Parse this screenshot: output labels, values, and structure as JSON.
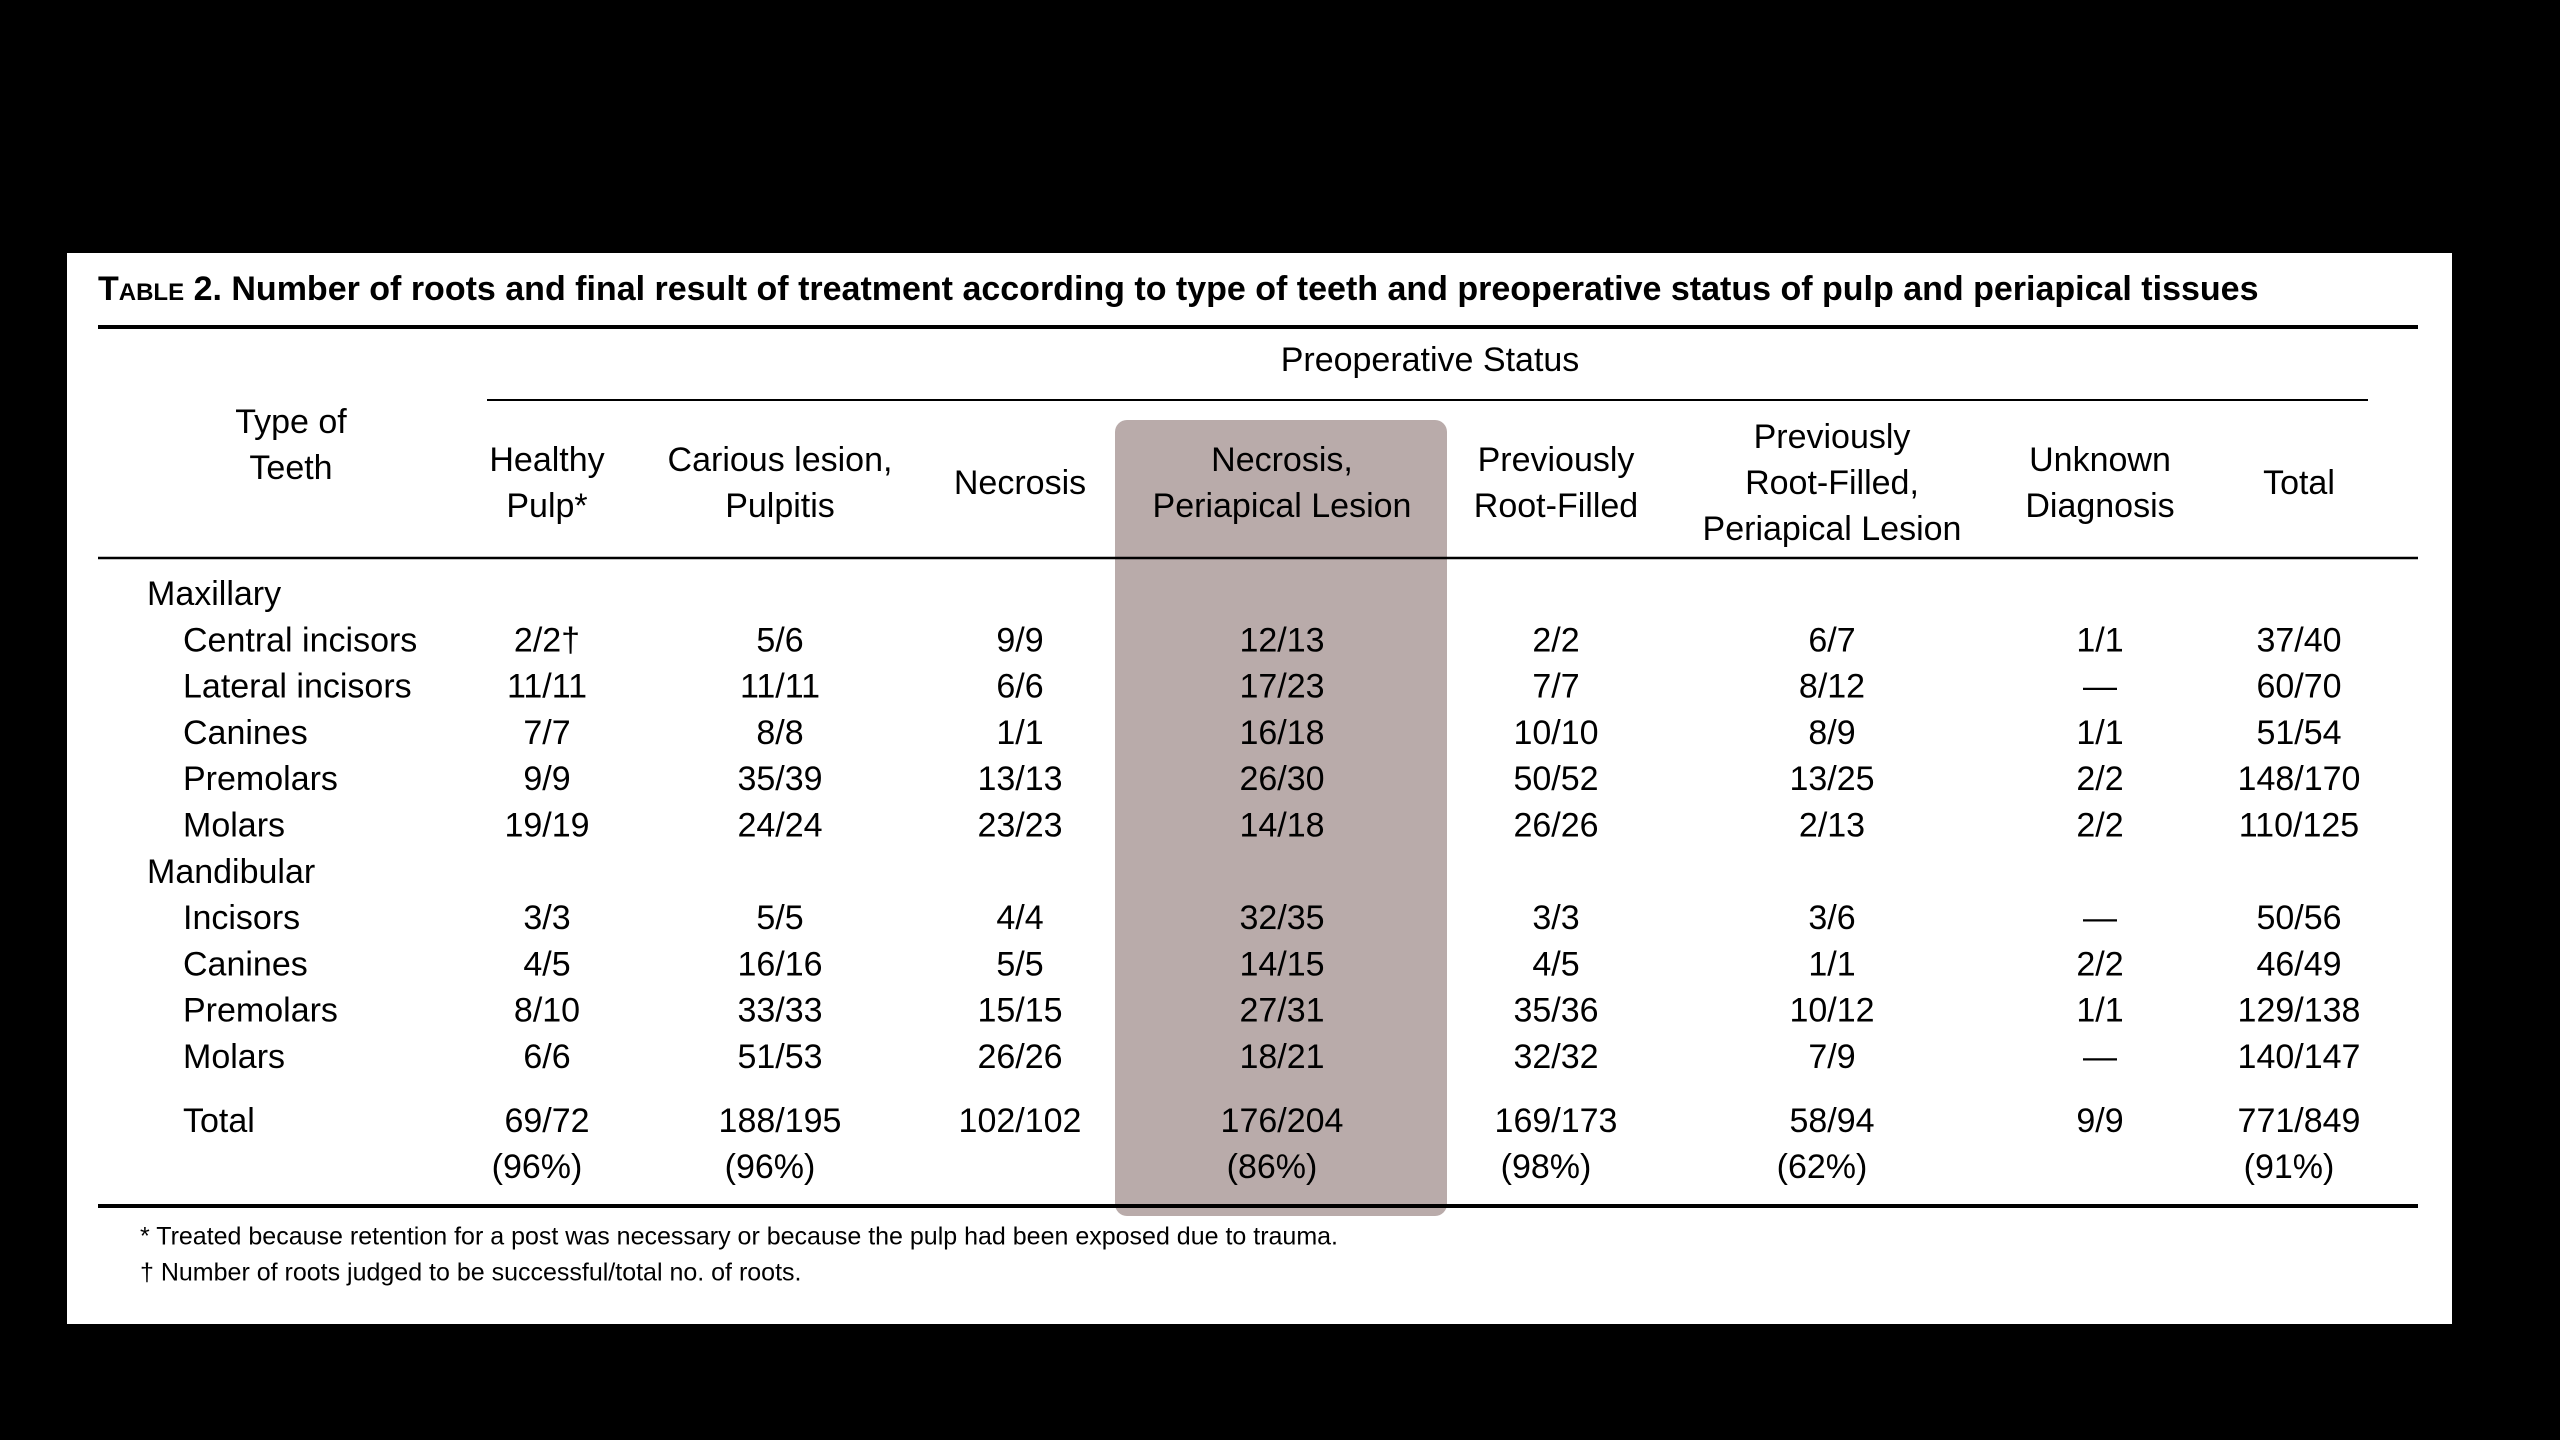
{
  "table": {
    "title_label": "Table",
    "title_number": "2.",
    "title": "Number of roots and final result of treatment according to type of teeth and preoperative status of pulp and periapical tissues",
    "spanner": "Preoperative Status",
    "stub_header": [
      "Type of",
      "Teeth"
    ],
    "columns": [
      [
        "Healthy",
        "Pulp*"
      ],
      [
        "Carious lesion,",
        "Pulpitis"
      ],
      [
        "Necrosis"
      ],
      [
        "Necrosis,",
        "Periapical Lesion"
      ],
      [
        "Previously",
        "Root-Filled"
      ],
      [
        "Previously",
        "Root-Filled,",
        "Periapical Lesion"
      ],
      [
        "Unknown",
        "Diagnosis"
      ],
      [
        "Total"
      ]
    ],
    "groups": [
      {
        "label": "Maxillary",
        "rows": [
          {
            "label": "Central incisors",
            "cells": [
              "2/2†",
              "5/6",
              "9/9",
              "12/13",
              "2/2",
              "6/7",
              "1/1",
              "37/40"
            ]
          },
          {
            "label": "Lateral incisors",
            "cells": [
              "11/11",
              "11/11",
              "6/6",
              "17/23",
              "7/7",
              "8/12",
              "—",
              "60/70"
            ]
          },
          {
            "label": "Canines",
            "cells": [
              "7/7",
              "8/8",
              "1/1",
              "16/18",
              "10/10",
              "8/9",
              "1/1",
              "51/54"
            ]
          },
          {
            "label": "Premolars",
            "cells": [
              "9/9",
              "35/39",
              "13/13",
              "26/30",
              "50/52",
              "13/25",
              "2/2",
              "148/170"
            ]
          },
          {
            "label": "Molars",
            "cells": [
              "19/19",
              "24/24",
              "23/23",
              "14/18",
              "26/26",
              "2/13",
              "2/2",
              "110/125"
            ]
          }
        ]
      },
      {
        "label": "Mandibular",
        "rows": [
          {
            "label": "Incisors",
            "cells": [
              "3/3",
              "5/5",
              "4/4",
              "32/35",
              "3/3",
              "3/6",
              "—",
              "50/56"
            ]
          },
          {
            "label": "Canines",
            "cells": [
              "4/5",
              "16/16",
              "5/5",
              "14/15",
              "4/5",
              "1/1",
              "2/2",
              "46/49"
            ]
          },
          {
            "label": "Premolars",
            "cells": [
              "8/10",
              "33/33",
              "15/15",
              "27/31",
              "35/36",
              "10/12",
              "1/1",
              "129/138"
            ]
          },
          {
            "label": "Molars",
            "cells": [
              "6/6",
              "51/53",
              "26/26",
              "18/21",
              "32/32",
              "7/9",
              "—",
              "140/147"
            ]
          }
        ]
      }
    ],
    "total": {
      "label": "Total",
      "cells": [
        "69/72",
        "188/195",
        "102/102",
        "176/204",
        "169/173",
        "58/94",
        "9/9",
        "771/849"
      ],
      "percents": [
        "(96%)",
        "(96%)",
        null,
        "(86%)",
        "(98%)",
        "(62%)",
        null,
        "(91%)"
      ]
    },
    "footnotes": [
      "* Treated because retention for a post was necessary or because the pulp had been exposed due to trauma.",
      "† Number of roots judged to be successful/total no. of roots."
    ]
  }
}
